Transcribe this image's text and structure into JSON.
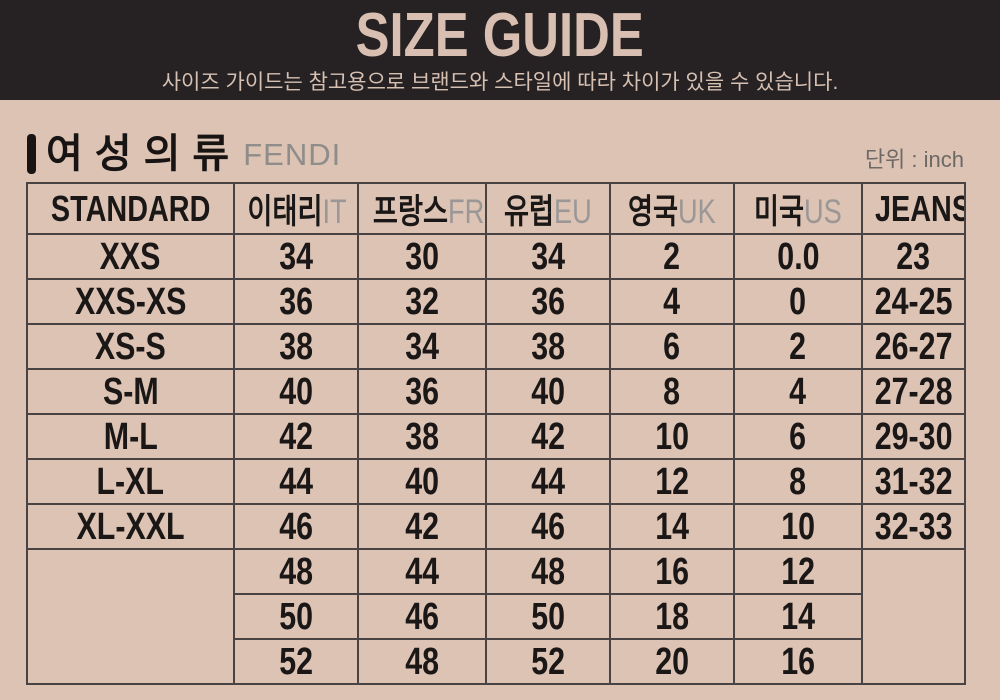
{
  "header": {
    "title": "SIZE GUIDE",
    "subtitle": "사이즈 가이드는 참고용으로 브랜드와 스타일에 따라 차이가 있을 수 있습니다."
  },
  "section": {
    "title": "여성의류",
    "brand": "FENDI",
    "unit_label": "단위 : inch"
  },
  "table": {
    "columns": [
      {
        "label": "STANDARD",
        "suffix": ""
      },
      {
        "label": "이태리",
        "suffix": "IT"
      },
      {
        "label": "프랑스",
        "suffix": "FR"
      },
      {
        "label": "유럽",
        "suffix": "EU"
      },
      {
        "label": "영국",
        "suffix": "UK"
      },
      {
        "label": "미국",
        "suffix": "US"
      },
      {
        "label": "JEANS",
        "suffix": ""
      }
    ],
    "rows": [
      [
        "XXS",
        "34",
        "30",
        "34",
        "2",
        "0.0",
        "23"
      ],
      [
        "XXS-XS",
        "36",
        "32",
        "36",
        "4",
        "0",
        "24-25"
      ],
      [
        "XS-S",
        "38",
        "34",
        "38",
        "6",
        "2",
        "26-27"
      ],
      [
        "S-M",
        "40",
        "36",
        "40",
        "8",
        "4",
        "27-28"
      ],
      [
        "M-L",
        "42",
        "38",
        "42",
        "10",
        "6",
        "29-30"
      ],
      [
        "L-XL",
        "44",
        "40",
        "44",
        "12",
        "8",
        "31-32"
      ],
      [
        "XL-XXL",
        "46",
        "42",
        "46",
        "14",
        "10",
        "32-33"
      ],
      [
        "",
        "48",
        "44",
        "48",
        "16",
        "12",
        ""
      ],
      [
        "",
        "50",
        "46",
        "50",
        "18",
        "14",
        ""
      ],
      [
        "",
        "52",
        "48",
        "52",
        "20",
        "16",
        ""
      ]
    ],
    "merged_bottom_rows": 3
  },
  "colors": {
    "page_background": "#dcc3b4",
    "banner_background": "#262122",
    "banner_text": "#d8bfb1",
    "table_border": "#4a4344",
    "text_primary": "#1a1716",
    "text_muted_suffix": "#9a9796",
    "brand_text": "#8f8c8a",
    "unit_text": "#6e6965"
  }
}
